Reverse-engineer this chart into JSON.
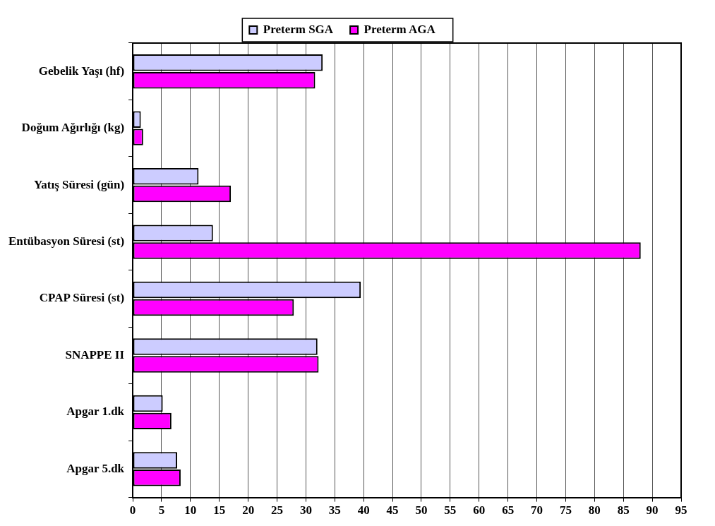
{
  "chart_data": {
    "type": "bar",
    "orientation": "horizontal",
    "categories": [
      "Gebelik Yaşı (hf)",
      "Doğum Ağırlığı (kg)",
      "Yatış Süresi (gün)",
      "Entübasyon Süresi (st)",
      "CPAP Süresi (st)",
      "SNAPPE II",
      "Apgar 1.dk",
      "Apgar 5.dk"
    ],
    "series": [
      {
        "name": "Preterm SGA",
        "color": "#ccccff",
        "values": [
          32.9,
          1.4,
          11.4,
          13.9,
          39.5,
          32.0,
          5.2,
          7.7
        ]
      },
      {
        "name": "Preterm AGA",
        "color": "#ff00ff",
        "values": [
          31.6,
          1.8,
          17.0,
          88.0,
          27.9,
          32.2,
          6.7,
          8.3
        ]
      }
    ],
    "xlim": [
      0,
      95
    ],
    "xticks": [
      0,
      5,
      10,
      15,
      20,
      25,
      30,
      35,
      40,
      45,
      50,
      55,
      60,
      65,
      70,
      75,
      80,
      85,
      90,
      95
    ],
    "grid": "x",
    "legend": "top"
  }
}
